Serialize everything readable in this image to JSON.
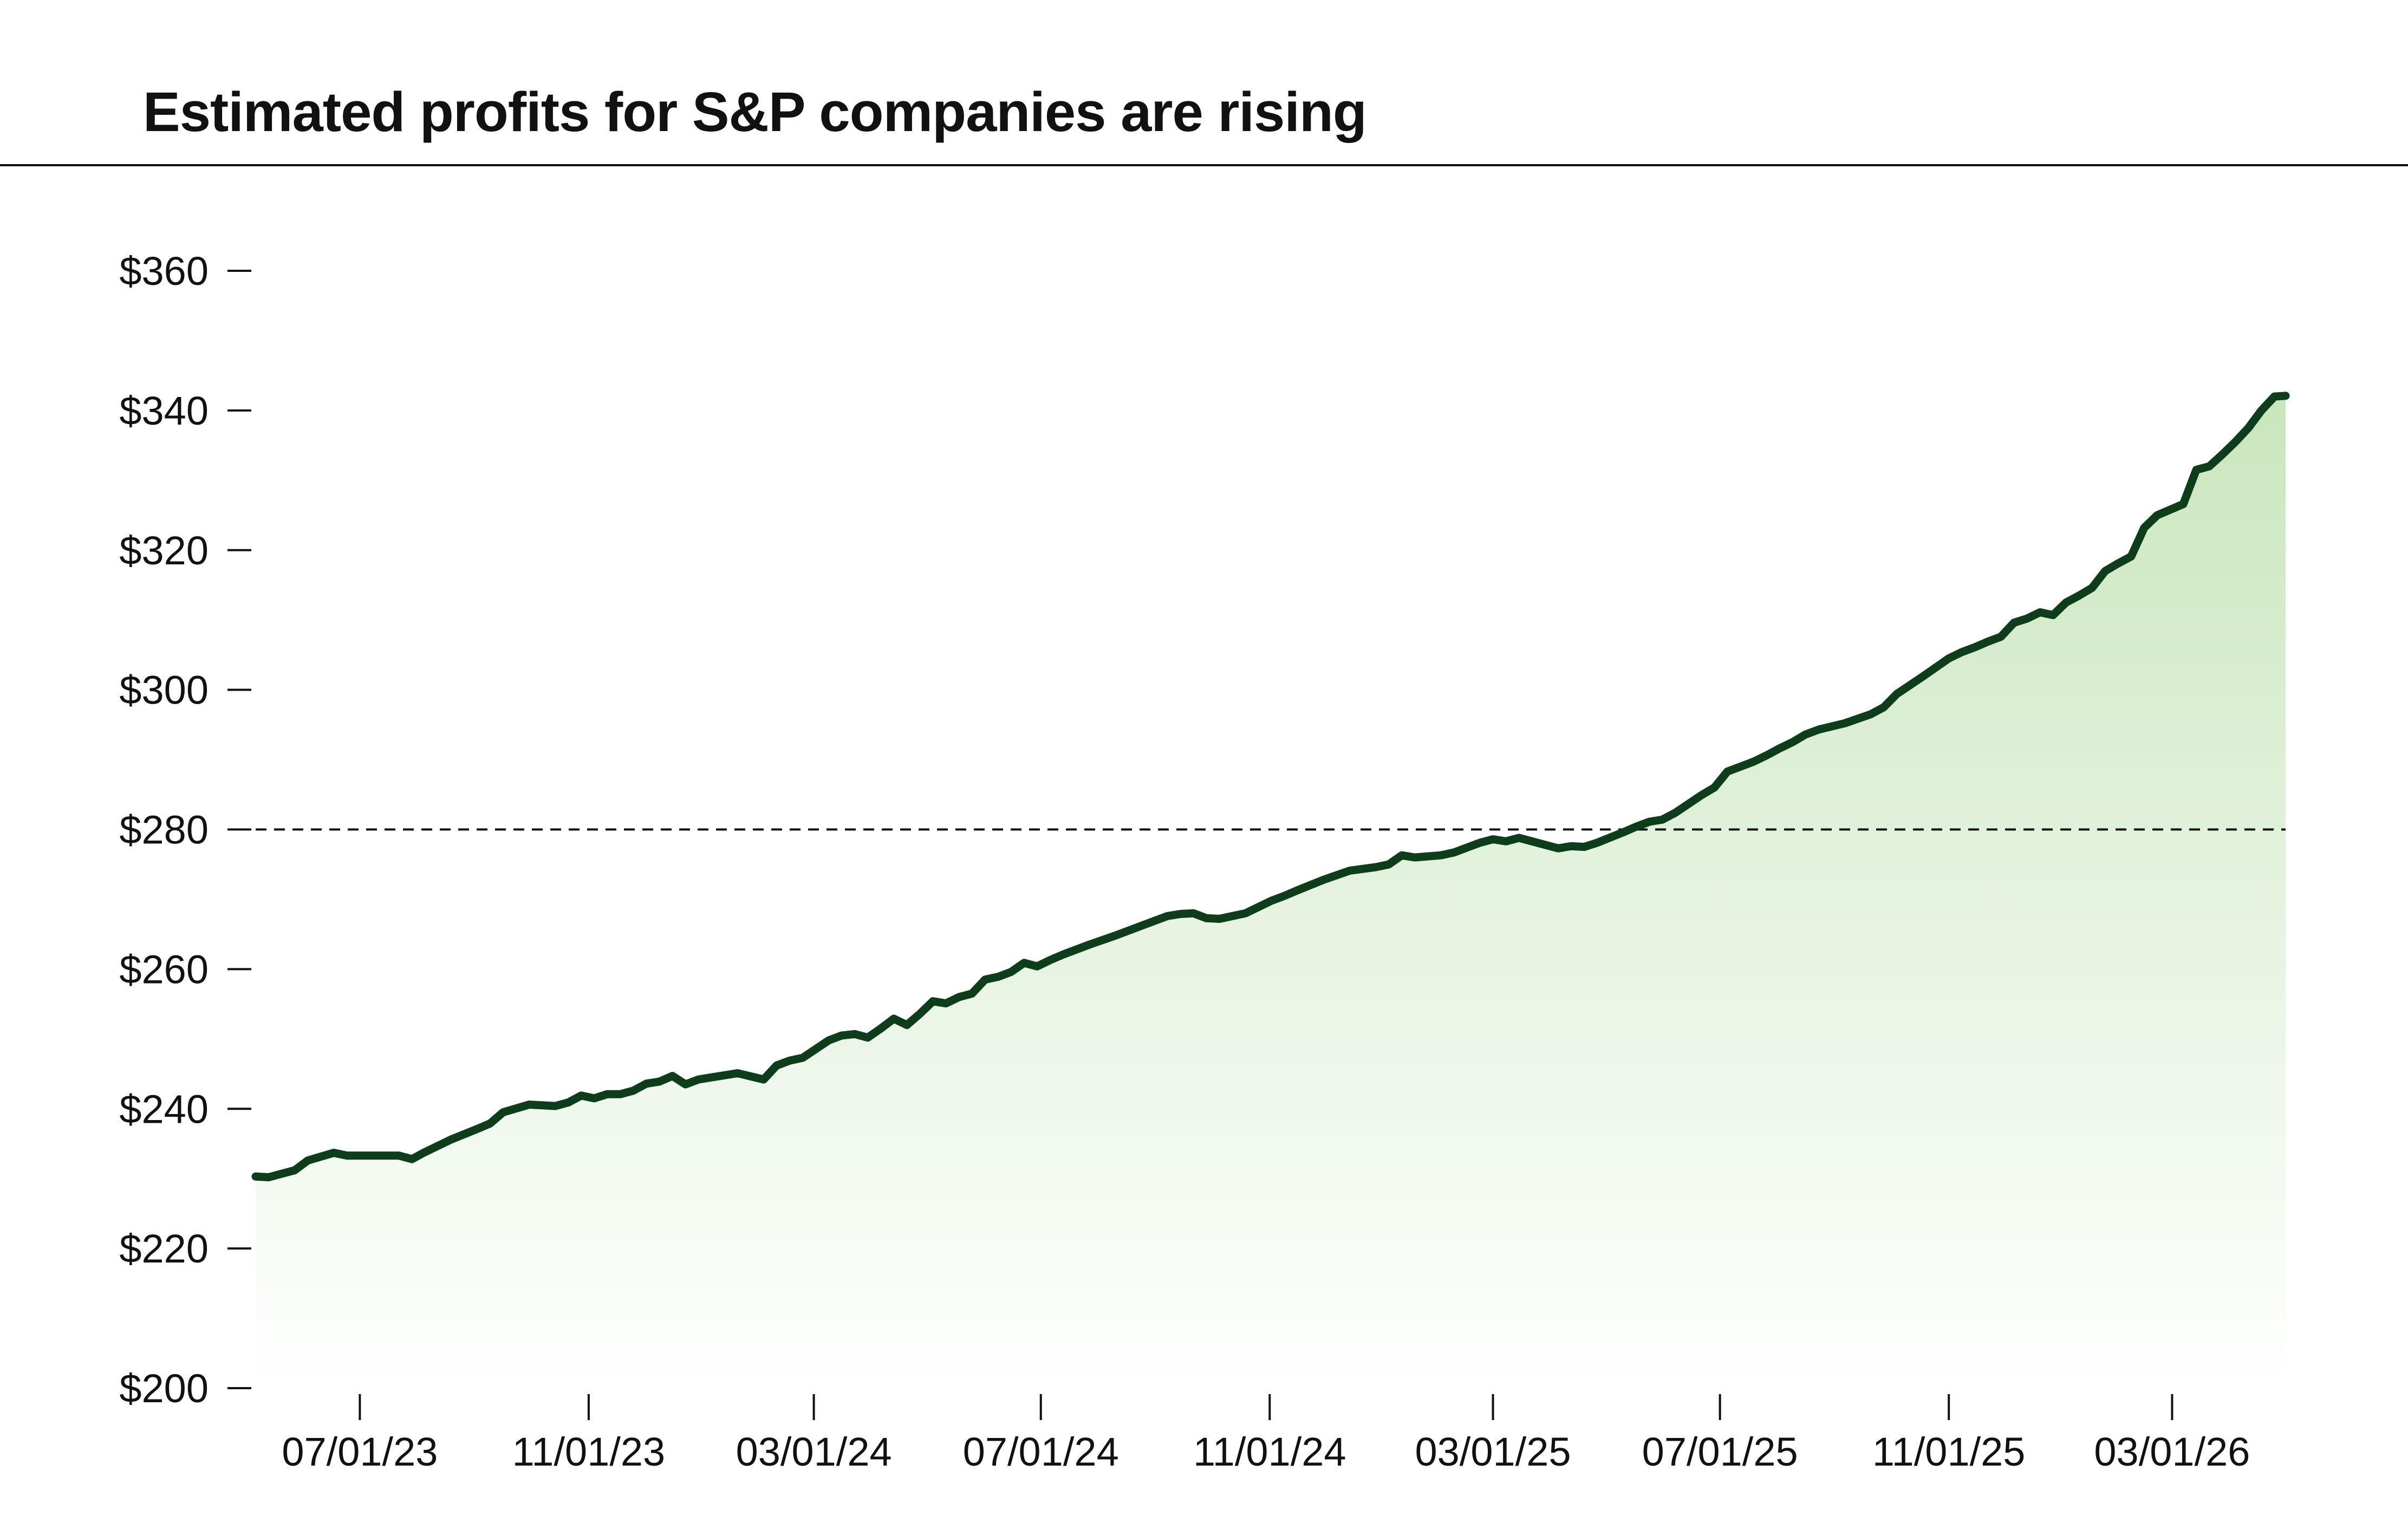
{
  "chart_data": {
    "type": "area",
    "title": "Estimated profits for S&P companies are rising",
    "xlabel": "",
    "ylabel": "",
    "ylim": [
      200,
      360
    ],
    "y_ticks": [
      "$200",
      "$220",
      "$240",
      "$260",
      "$280",
      "$300",
      "$320",
      "$340",
      "$360"
    ],
    "y_tick_values": [
      200,
      220,
      240,
      260,
      280,
      300,
      320,
      340,
      360
    ],
    "x_ticks": [
      "07/01/23",
      "11/01/23",
      "03/01/24",
      "07/01/24",
      "11/01/24",
      "03/01/25",
      "07/01/25",
      "11/01/25",
      "03/01/26"
    ],
    "x_tick_dates": [
      "2023-07-01",
      "2023-11-01",
      "2024-03-01",
      "2024-07-01",
      "2024-11-01",
      "2025-03-01",
      "2025-07-01",
      "2025-11-01",
      "2026-03-01"
    ],
    "xlim": [
      "2023-05-06",
      "2026-05-01"
    ],
    "reference_line": {
      "value": 280,
      "style": "dashed"
    },
    "grid": false,
    "legend": "none",
    "colors": {
      "line": "#0d3d1a",
      "fill_top": "#c9e6bd",
      "fill_bottom": "#ffffff",
      "axis": "#111111"
    },
    "series": [
      {
        "x": [
          "2023-05-06",
          "2023-05-13",
          "2023-05-27",
          "2023-06-03",
          "2023-06-17",
          "2023-06-24",
          "2023-07-08",
          "2023-07-22",
          "2023-07-29",
          "2023-08-05",
          "2023-08-19",
          "2023-09-02",
          "2023-09-09",
          "2023-09-16",
          "2023-09-30",
          "2023-10-14",
          "2023-10-21",
          "2023-10-28",
          "2023-11-04",
          "2023-11-11",
          "2023-11-18",
          "2023-11-25",
          "2023-12-02",
          "2023-12-09",
          "2023-12-16",
          "2023-12-23",
          "2023-12-30",
          "2024-01-06",
          "2024-01-13",
          "2024-01-20",
          "2024-02-03",
          "2024-02-10",
          "2024-02-17",
          "2024-02-24",
          "2024-03-09",
          "2024-03-16",
          "2024-03-23",
          "2024-03-30",
          "2024-04-06",
          "2024-04-13",
          "2024-04-20",
          "2024-04-27",
          "2024-05-04",
          "2024-05-11",
          "2024-05-18",
          "2024-05-25",
          "2024-06-01",
          "2024-06-08",
          "2024-06-15",
          "2024-06-22",
          "2024-06-29",
          "2024-07-06",
          "2024-07-13",
          "2024-07-27",
          "2024-08-10",
          "2024-08-24",
          "2024-09-07",
          "2024-09-14",
          "2024-09-21",
          "2024-09-28",
          "2024-10-05",
          "2024-10-19",
          "2024-11-02",
          "2024-11-09",
          "2024-11-16",
          "2024-11-30",
          "2024-12-14",
          "2024-12-28",
          "2025-01-04",
          "2025-01-11",
          "2025-01-18",
          "2025-02-01",
          "2025-02-08",
          "2025-02-15",
          "2025-02-22",
          "2025-03-01",
          "2025-03-08",
          "2025-03-15",
          "2025-03-29",
          "2025-04-05",
          "2025-04-12",
          "2025-04-19",
          "2025-04-26",
          "2025-05-10",
          "2025-05-17",
          "2025-05-24",
          "2025-05-31",
          "2025-06-07",
          "2025-06-21",
          "2025-06-28",
          "2025-07-05",
          "2025-07-12",
          "2025-07-19",
          "2025-07-26",
          "2025-08-02",
          "2025-08-09",
          "2025-08-16",
          "2025-08-23",
          "2025-09-06",
          "2025-09-20",
          "2025-09-27",
          "2025-10-04",
          "2025-10-18",
          "2025-11-01",
          "2025-11-08",
          "2025-11-15",
          "2025-11-22",
          "2025-11-29",
          "2025-12-06",
          "2025-12-13",
          "2025-12-20",
          "2025-12-27",
          "2026-01-03",
          "2026-01-10",
          "2026-01-17",
          "2026-01-24",
          "2026-01-31",
          "2026-02-07",
          "2026-02-14",
          "2026-02-21",
          "2026-03-07",
          "2026-03-14",
          "2026-03-21",
          "2026-03-28",
          "2026-04-04",
          "2026-04-11",
          "2026-04-18",
          "2026-04-25",
          "2026-05-01"
        ],
        "values": [
          230.3,
          230.2,
          231.2,
          232.6,
          233.7,
          233.3,
          233.3,
          233.3,
          232.8,
          233.8,
          235.6,
          237.1,
          237.9,
          239.5,
          240.6,
          240.4,
          240.9,
          241.9,
          241.5,
          242.1,
          242.1,
          242.6,
          243.6,
          243.9,
          244.7,
          243.5,
          244.2,
          244.5,
          244.8,
          245.1,
          244.2,
          246.2,
          246.9,
          247.3,
          249.8,
          250.5,
          250.7,
          250.2,
          251.5,
          252.9,
          252.0,
          253.6,
          255.4,
          255.1,
          256.0,
          256.5,
          258.5,
          258.9,
          259.6,
          260.9,
          260.4,
          261.3,
          262.1,
          263.5,
          264.8,
          266.2,
          267.6,
          267.9,
          268.0,
          267.3,
          267.2,
          268.0,
          269.8,
          270.5,
          271.3,
          272.8,
          274.1,
          274.6,
          275.0,
          276.3,
          276.0,
          276.3,
          276.7,
          277.4,
          278.1,
          278.6,
          278.3,
          278.8,
          277.8,
          277.3,
          277.6,
          277.5,
          278.1,
          279.6,
          280.4,
          281.1,
          281.4,
          282.4,
          284.9,
          286.0,
          288.3,
          289.0,
          289.7,
          290.6,
          291.6,
          292.5,
          293.6,
          294.3,
          295.2,
          296.5,
          297.5,
          299.4,
          301.9,
          304.5,
          305.4,
          306.1,
          306.9,
          307.6,
          309.6,
          310.2,
          311.1,
          310.7,
          312.5,
          313.5,
          314.6,
          317.0,
          318.1,
          319.1,
          323.2,
          325.0,
          326.6,
          331.5,
          332.0,
          333.7,
          335.5,
          337.5,
          340.0,
          342.0,
          342.1
        ]
      }
    ]
  }
}
